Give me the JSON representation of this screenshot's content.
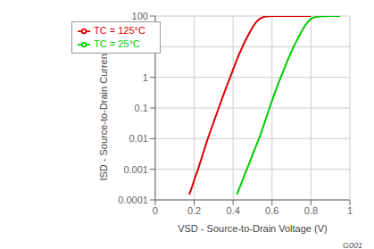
{
  "chart_data": {
    "type": "line",
    "title": "",
    "xlabel": "VSD - Source-to-Drain Voltage (V)",
    "ylabel": "ISD - Source-to-Drain Current (A)",
    "log": "y",
    "grid": true,
    "legend": "upper left",
    "annotation": "G001",
    "xlim": [
      0,
      1.0
    ],
    "xticks": [
      0,
      0.2,
      0.4,
      0.6,
      0.8,
      1.0
    ],
    "ylim": [
      0.0001,
      100
    ],
    "yticks": [
      0.0001,
      0.001,
      0.01,
      0.1,
      1,
      10,
      100
    ],
    "series": [
      {
        "name": "TC = 25°C",
        "color": "#00cc00",
        "x": [
          0.42,
          0.44,
          0.46,
          0.48,
          0.5,
          0.52,
          0.54,
          0.555,
          0.57,
          0.585,
          0.6,
          0.615,
          0.63,
          0.645,
          0.66,
          0.675,
          0.69,
          0.705,
          0.72,
          0.735,
          0.75,
          0.765,
          0.78,
          0.795,
          0.81,
          0.83,
          0.86,
          0.9,
          0.95
        ],
        "values": [
          0.00015,
          0.00032,
          0.00068,
          0.0014,
          0.003,
          0.0062,
          0.013,
          0.025,
          0.048,
          0.092,
          0.175,
          0.32,
          0.58,
          1.0,
          1.75,
          3.0,
          5.0,
          8.2,
          13.0,
          20,
          30,
          44,
          60,
          76,
          88,
          95,
          99,
          100,
          100
        ]
      },
      {
        "name": "TC = 125°C",
        "color": "#dd0000",
        "x": [
          0.175,
          0.19,
          0.205,
          0.22,
          0.235,
          0.25,
          0.265,
          0.28,
          0.295,
          0.31,
          0.325,
          0.34,
          0.355,
          0.37,
          0.385,
          0.4,
          0.415,
          0.43,
          0.445,
          0.46,
          0.475,
          0.49,
          0.505,
          0.52,
          0.535,
          0.55,
          0.565,
          0.58,
          0.6,
          0.63,
          0.66,
          0.7,
          0.75,
          0.8
        ],
        "values": [
          0.00015,
          0.00028,
          0.00055,
          0.001,
          0.002,
          0.004,
          0.008,
          0.015,
          0.028,
          0.052,
          0.095,
          0.175,
          0.32,
          0.58,
          1.0,
          1.8,
          3.2,
          5.5,
          9.0,
          14.5,
          22,
          33,
          48,
          65,
          80,
          90,
          96,
          99,
          100,
          100,
          100,
          100,
          100,
          100
        ]
      }
    ]
  }
}
